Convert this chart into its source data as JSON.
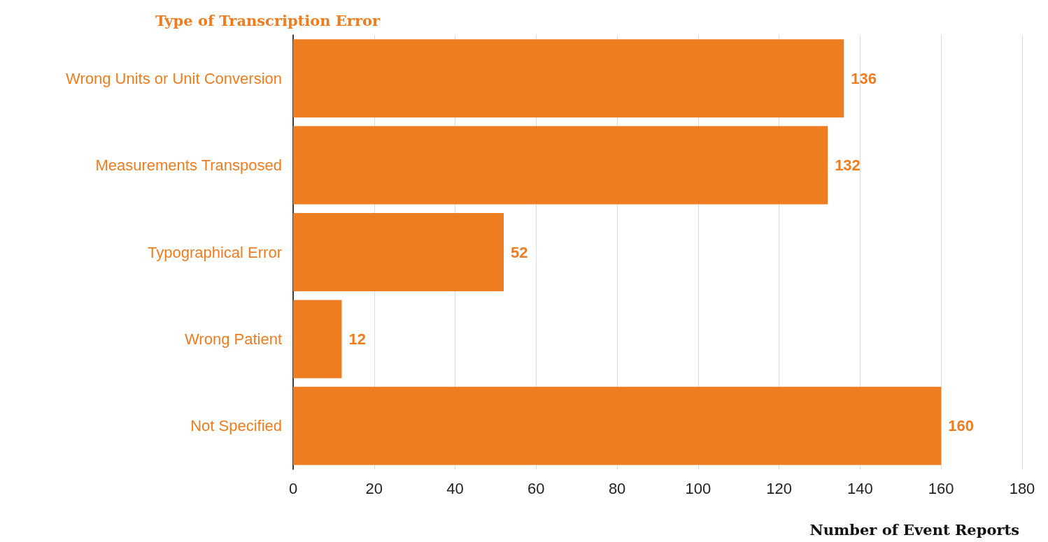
{
  "chart_data": {
    "type": "bar",
    "orientation": "horizontal",
    "ylabel": "Type of Transcription Error",
    "xlabel": "Number of Event Reports",
    "categories": [
      "Wrong Units or Unit Conversion",
      "Measurements Transposed",
      "Typographical Error",
      "Wrong Patient",
      "Not Specified"
    ],
    "values": [
      136,
      132,
      52,
      12,
      160
    ],
    "color": "#ee7d22",
    "data_labels": true,
    "xlim": [
      0,
      180
    ],
    "xticks": [
      0,
      20,
      40,
      60,
      80,
      100,
      120,
      140,
      160,
      180
    ],
    "grid": "x"
  }
}
